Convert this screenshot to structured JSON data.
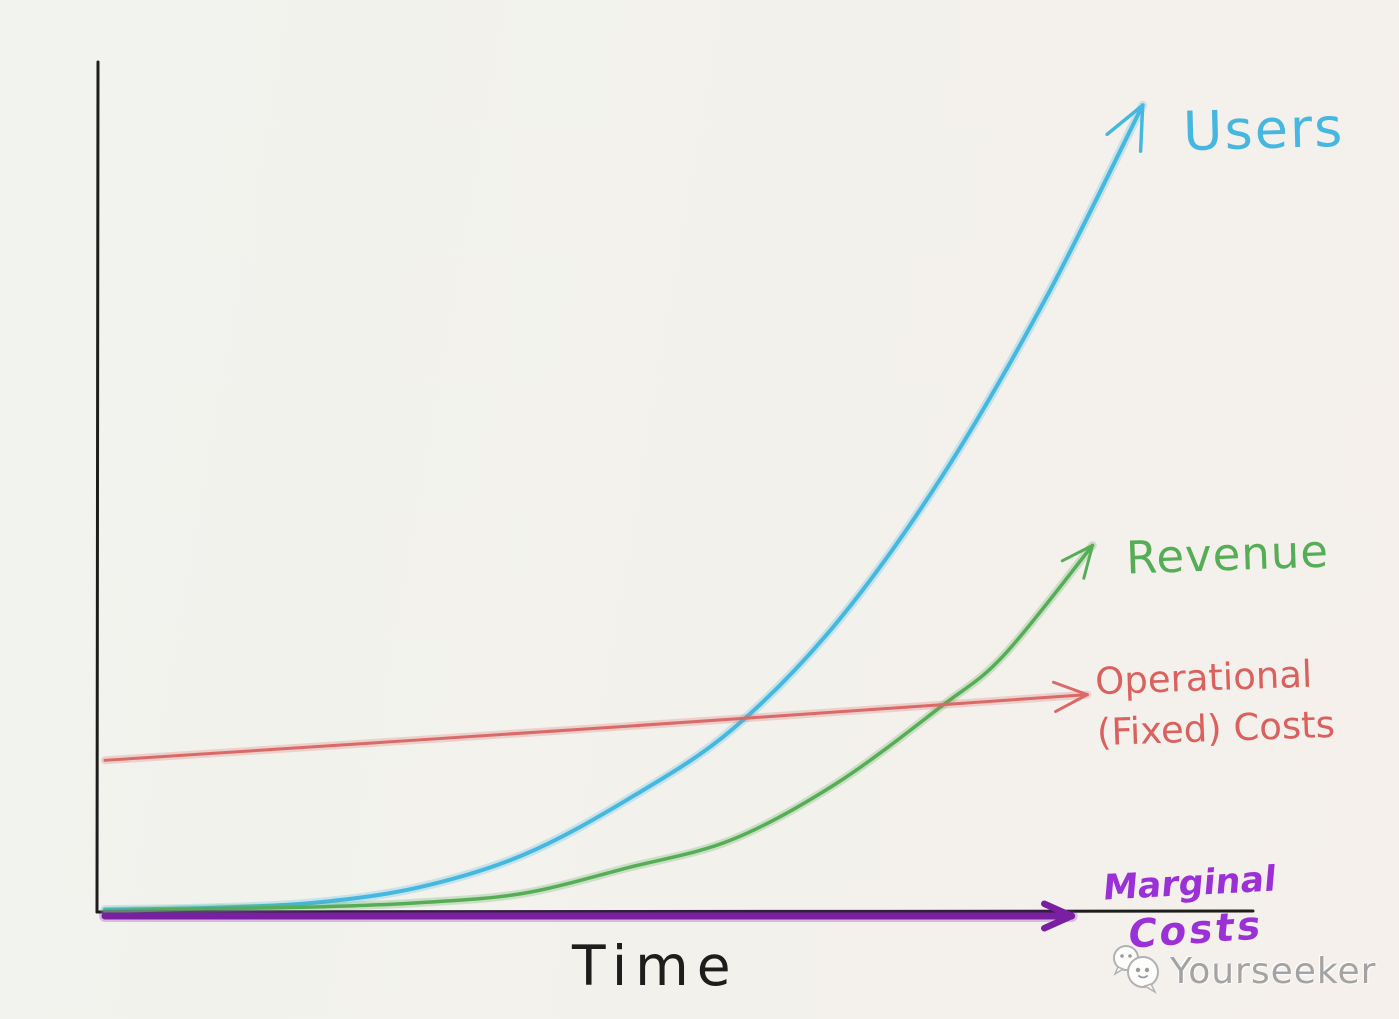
{
  "page": {
    "background": "#f2f2ed"
  },
  "chart_data": {
    "type": "line",
    "title": "",
    "subtitle": "",
    "xlabel": "Time",
    "ylabel": "",
    "grid": false,
    "legend_position": "inline-labels-at-curve-ends",
    "x_axis": {
      "label": "Time",
      "tick_labels": [],
      "range_normalized": [
        0,
        1
      ]
    },
    "y_axis": {
      "label": "",
      "tick_labels": [],
      "range_normalized": [
        0,
        1
      ]
    },
    "axis_color": "#1d1d1b",
    "description": "Hand-drawn startup economics sketch: Users and Revenue grow exponentially over time while Operational (Fixed) Costs stay nearly flat and Marginal Costs stay at zero.",
    "series": [
      {
        "name": "Users",
        "label": "Users",
        "color": "#46b8e0",
        "shape": "exponential-growth",
        "ends_with_arrow": true,
        "x": [
          0.0,
          0.1,
          0.2,
          0.3,
          0.4,
          0.5,
          0.6,
          0.7,
          0.8,
          0.9,
          0.993
        ],
        "y": [
          0.004,
          0.006,
          0.012,
          0.03,
          0.068,
          0.133,
          0.215,
          0.34,
          0.51,
          0.72,
          0.947
        ]
      },
      {
        "name": "Revenue",
        "label": "Revenue",
        "color": "#55ad55",
        "shape": "exponential-growth-lagging-users",
        "ends_with_arrow": true,
        "x": [
          0.0,
          0.1,
          0.2,
          0.3,
          0.4,
          0.5,
          0.6,
          0.7,
          0.8,
          0.86,
          0.945
        ],
        "y": [
          0.002,
          0.005,
          0.007,
          0.012,
          0.023,
          0.053,
          0.086,
          0.152,
          0.242,
          0.302,
          0.431
        ]
      },
      {
        "name": "Operational (Fixed) Costs",
        "label": "Operational (Fixed) Costs",
        "label_line1": "Operational",
        "label_line2": "(Fixed) Costs",
        "color": "#d96a68",
        "shape": "flat-slightly-rising",
        "ends_with_arrow": true,
        "x": [
          0.0,
          0.5,
          0.94
        ],
        "y": [
          0.179,
          0.219,
          0.256
        ]
      },
      {
        "name": "Marginal Costs",
        "label": "Marginal Costs",
        "label_line1": "Marginal",
        "label_line2": "Costs",
        "color": "#7b1fa2",
        "shape": "flat-at-zero",
        "ends_with_arrow": true,
        "x": [
          0.0,
          0.5,
          0.925
        ],
        "y": [
          0.0,
          0.0,
          0.0
        ]
      }
    ]
  },
  "watermark": {
    "text": "Yourseeker",
    "icon": "chat-bubbles-icon",
    "color": "#a3a3a3"
  }
}
